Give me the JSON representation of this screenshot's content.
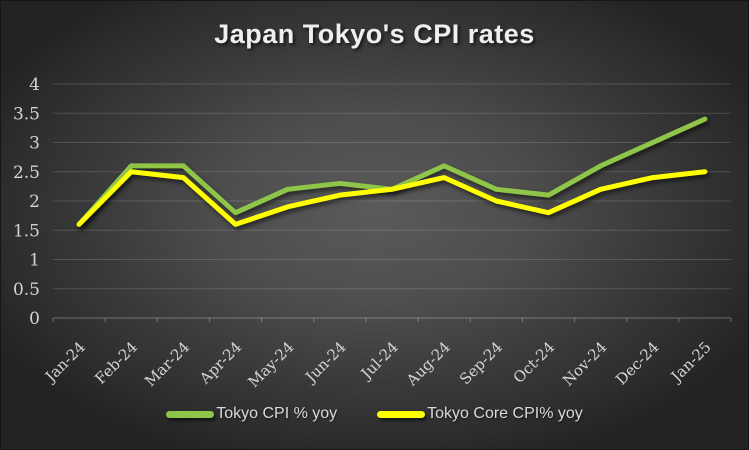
{
  "chart_data": {
    "type": "line",
    "title": "Japan Tokyo's CPI rates",
    "categories": [
      "Jan-24",
      "Feb-24",
      "Mar-24",
      "Apr-24",
      "May-24",
      "Jun-24",
      "Jul-24",
      "Aug-24",
      "Sep-24",
      "Oct-24",
      "Nov-24",
      "Dec-24",
      "Jan-25"
    ],
    "series": [
      {
        "name": "Tokyo CPI % yoy",
        "color": "#8fc64a",
        "values": [
          1.6,
          2.6,
          2.6,
          1.8,
          2.2,
          2.3,
          2.2,
          2.6,
          2.2,
          2.1,
          2.6,
          3.0,
          3.4
        ]
      },
      {
        "name": "Tokyo Core CPI% yoy",
        "color": "#ffff00",
        "values": [
          1.6,
          2.5,
          2.4,
          1.6,
          1.9,
          2.1,
          2.2,
          2.4,
          2.0,
          1.8,
          2.2,
          2.4,
          2.5
        ]
      }
    ],
    "xlabel": "",
    "ylabel": "",
    "ylim": [
      0,
      4
    ],
    "ytick_step": 0.5,
    "grid": true,
    "legend_position": "bottom",
    "background_center_color": "#5a5a5a",
    "background_edge_color": "#232323",
    "text_color": "#d4d4d4"
  }
}
